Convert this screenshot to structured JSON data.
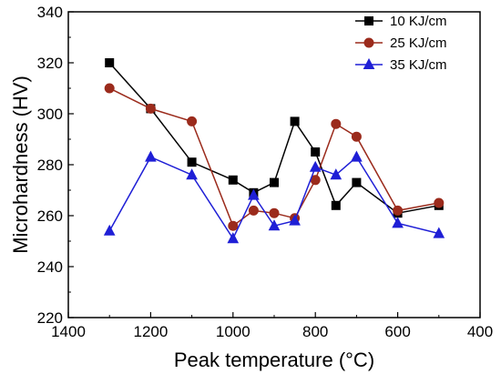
{
  "chart_data": {
    "type": "line",
    "title": "",
    "xlabel": "Peak temperature (°C)",
    "ylabel": "Microhardness (HV)",
    "xlim": [
      1400,
      400
    ],
    "ylim": [
      220,
      340
    ],
    "x_reversed": true,
    "xticks": [
      1400,
      1200,
      1000,
      800,
      600,
      400
    ],
    "yticks": [
      220,
      240,
      260,
      280,
      300,
      320,
      340
    ],
    "xtick_labels": [
      "1400",
      "1200",
      "1000",
      "800",
      "600",
      "400"
    ],
    "ytick_labels": [
      "220",
      "240",
      "260",
      "280",
      "300",
      "320",
      "340"
    ],
    "legend_position": "top-right",
    "grid": false,
    "series": [
      {
        "name": "10 KJ/cm",
        "marker": "square",
        "color": "#000000",
        "x": [
          1300,
          1200,
          1100,
          1000,
          950,
          900,
          850,
          800,
          750,
          700,
          600,
          500
        ],
        "y": [
          320,
          302,
          281,
          274,
          269,
          273,
          297,
          285,
          264,
          273,
          261,
          264
        ]
      },
      {
        "name": "25 KJ/cm",
        "marker": "circle",
        "color": "#9b2b1c",
        "x": [
          1300,
          1200,
          1100,
          1000,
          950,
          900,
          850,
          800,
          750,
          700,
          600,
          500
        ],
        "y": [
          310,
          302,
          297,
          256,
          262,
          261,
          259,
          274,
          296,
          291,
          262,
          265
        ]
      },
      {
        "name": "35 KJ/cm",
        "marker": "triangle",
        "color": "#1f1fd6",
        "x": [
          1300,
          1200,
          1100,
          1000,
          950,
          900,
          850,
          800,
          750,
          700,
          600,
          500
        ],
        "y": [
          254,
          283,
          276,
          251,
          268,
          256,
          258,
          279,
          276,
          283,
          257,
          253
        ]
      }
    ]
  }
}
